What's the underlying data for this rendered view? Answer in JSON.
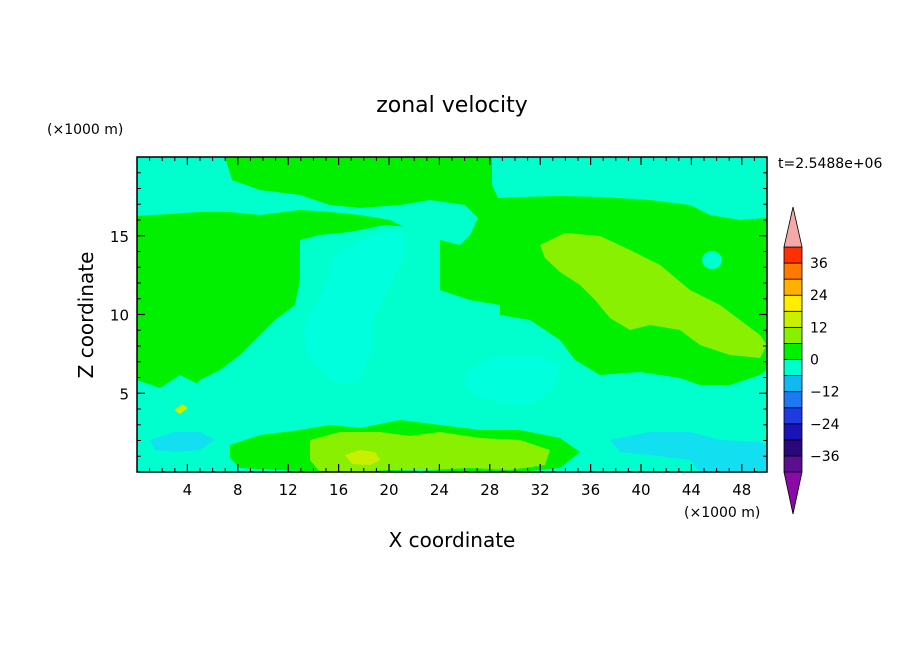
{
  "chart_data": {
    "type": "heatmap",
    "title": "zonal velocity",
    "xlabel": "X coordinate",
    "ylabel": "Z coordinate",
    "x_unit": "(×1000 m)",
    "y_unit": "(×1000 m)",
    "time_label": "t=2.5488e+06",
    "xlim": [
      0,
      50
    ],
    "ylim": [
      0,
      20
    ],
    "x_ticks": [
      4,
      8,
      12,
      16,
      20,
      24,
      28,
      32,
      36,
      40,
      44,
      48
    ],
    "y_ticks": [
      5,
      10,
      15
    ],
    "colorbar": {
      "levels": [
        -42,
        -36,
        -30,
        -24,
        -18,
        -12,
        -6,
        0,
        6,
        12,
        18,
        24,
        30,
        36,
        42
      ],
      "tick_labels": [
        "36",
        "24",
        "12",
        "0",
        "−12",
        "−24",
        "−36"
      ],
      "tick_values": [
        36,
        24,
        12,
        0,
        -12,
        -24,
        -36
      ],
      "colors": [
        "#5b0f8f",
        "#28087a",
        "#1a14b8",
        "#1e3ae0",
        "#1e78f0",
        "#12b8f0",
        "#00ffcc",
        "#00f000",
        "#88f000",
        "#c8f000",
        "#ffee00",
        "#ffb000",
        "#ff7800",
        "#ff3000",
        "#e60000"
      ],
      "over_color": "#f4a8a8",
      "under_color": "#8a0aa8"
    },
    "field_description_levels": {
      "background": "#00ffcc band (-6 to 0) and #00f000 band (0 to 6)"
    }
  }
}
